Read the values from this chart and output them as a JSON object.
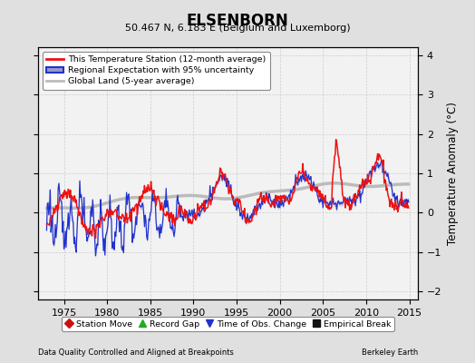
{
  "title": "ELSENBORN",
  "subtitle": "50.467 N, 6.183 E (Belgium and Luxemborg)",
  "ylabel": "Temperature Anomaly (°C)",
  "xlabel_left": "Data Quality Controlled and Aligned at Breakpoints",
  "xlabel_right": "Berkeley Earth",
  "xlim": [
    1972,
    2016
  ],
  "ylim": [
    -2.2,
    4.2
  ],
  "yticks": [
    -2,
    -1,
    0,
    1,
    2,
    3,
    4
  ],
  "xticks": [
    1975,
    1980,
    1985,
    1990,
    1995,
    2000,
    2005,
    2010,
    2015
  ],
  "bg_color": "#e0e0e0",
  "plot_bg_color": "#f2f2f2",
  "red_color": "#ee1111",
  "blue_color": "#2233cc",
  "blue_fill_color": "#9999cc",
  "gray_color": "#bbbbbb",
  "grid_color": "#cccccc",
  "legend_fontsize": 7.5,
  "title_fontsize": 12,
  "subtitle_fontsize": 8
}
